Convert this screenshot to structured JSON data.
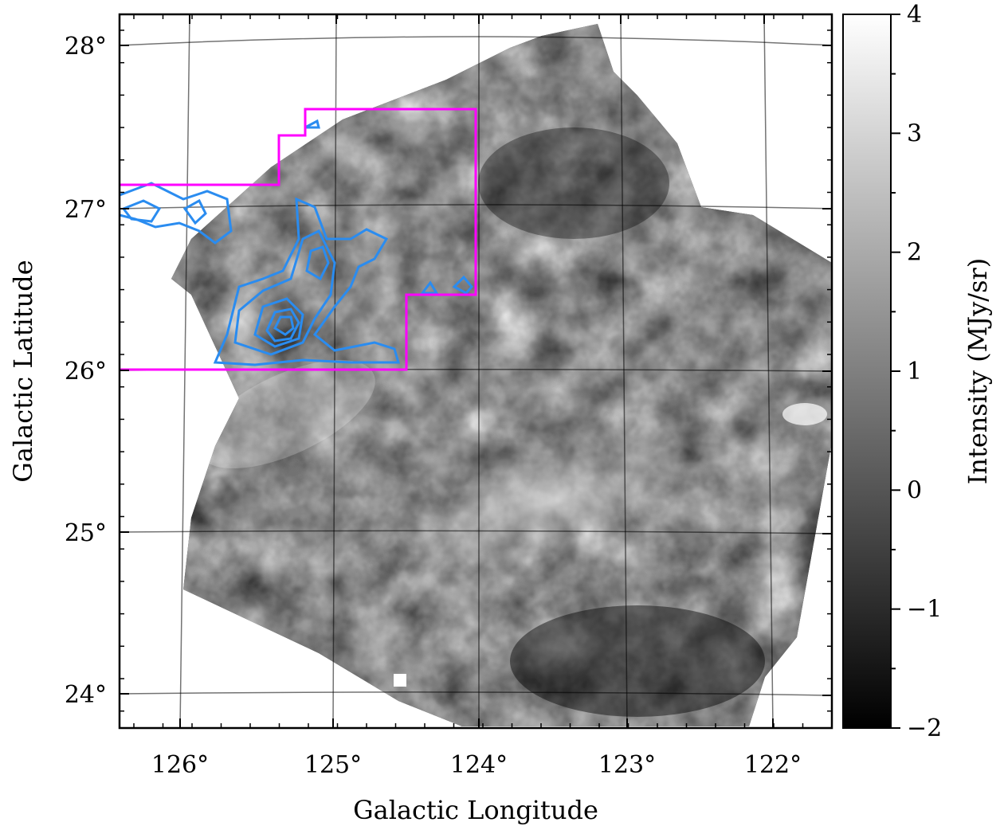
{
  "chart_data": {
    "type": "heatmap",
    "title": "",
    "xlabel": "Galactic Longitude",
    "ylabel": "Galactic Latitude",
    "x_range_deg": [
      126.4,
      121.6
    ],
    "y_range_deg": [
      23.8,
      28.2
    ],
    "x_ticks": [
      {
        "value": 126,
        "label": "126°"
      },
      {
        "value": 125,
        "label": "125°"
      },
      {
        "value": 124,
        "label": "124°"
      },
      {
        "value": 123,
        "label": "123°"
      },
      {
        "value": 122,
        "label": "122°"
      }
    ],
    "y_ticks": [
      {
        "value": 28,
        "label": "28°"
      },
      {
        "value": 27,
        "label": "27°"
      },
      {
        "value": 26,
        "label": "26°"
      },
      {
        "value": 25,
        "label": "25°"
      },
      {
        "value": 24,
        "label": "24°"
      }
    ],
    "grid": true,
    "colormap": "gray",
    "colorbar": {
      "label": "Intensity (MJy/sr)",
      "range": [
        -2,
        4
      ],
      "ticks": [
        {
          "value": 4,
          "label": "4"
        },
        {
          "value": 3,
          "label": "3"
        },
        {
          "value": 2,
          "label": "2"
        },
        {
          "value": 1,
          "label": "1"
        },
        {
          "value": 0,
          "label": "0"
        },
        {
          "value": -1,
          "label": "−1"
        },
        {
          "value": -2,
          "label": "−2"
        }
      ]
    },
    "overlays": {
      "region_boundary_color": "#ff00ff",
      "region_boundary_deg": [
        [
          126.4,
          27.13
        ],
        [
          125.3,
          27.13
        ],
        [
          125.3,
          27.43
        ],
        [
          125.15,
          27.43
        ],
        [
          125.15,
          27.6
        ],
        [
          124.0,
          27.6
        ],
        [
          124.0,
          26.45
        ],
        [
          124.5,
          26.45
        ],
        [
          124.5,
          26.0
        ],
        [
          126.4,
          26.0
        ]
      ],
      "contour_color": "#2a8cf0",
      "contour_peak_deg": [
        125.25,
        26.25
      ]
    }
  }
}
